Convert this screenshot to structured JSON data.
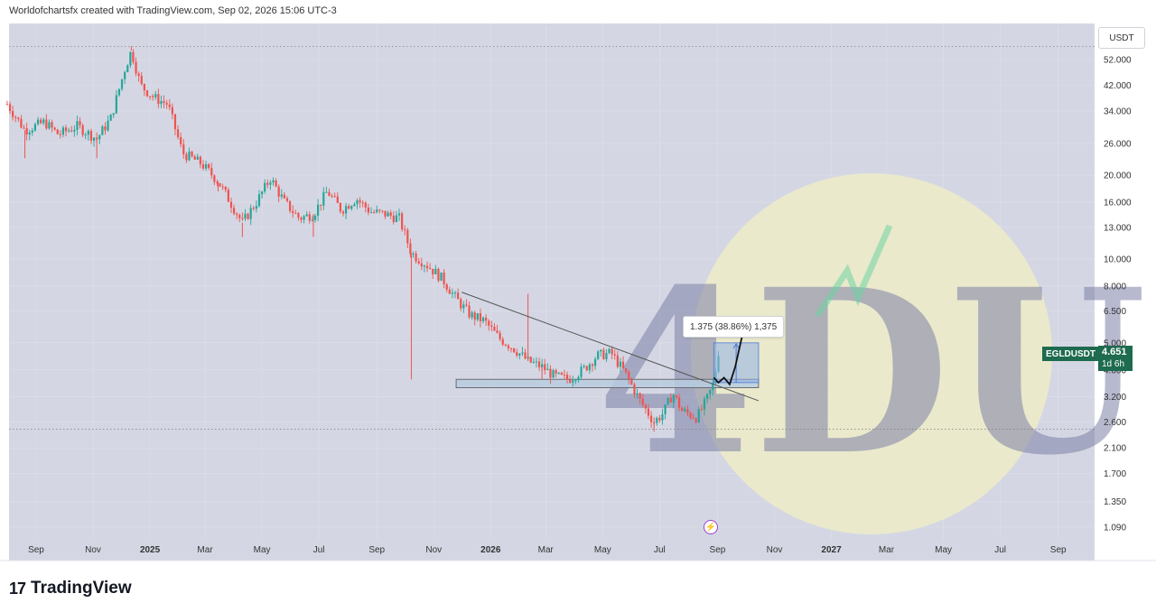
{
  "header": {
    "text": "Worldofchartsfx created with TradingView.com, Sep 02, 2026 15:06 UTC-3"
  },
  "currency": "USDT",
  "ticker": {
    "symbol": "EGLDUSDT",
    "price": "4.651",
    "countdown": "1d 6h"
  },
  "measure_label": "1.375 (38.86%) 1,375",
  "footer": {
    "brand": "TradingView",
    "logo_mark": "17"
  },
  "watermark": {
    "letters": "4DU"
  },
  "colors": {
    "up": "#26a69a",
    "down": "#ef5350",
    "plot_bg": "#d4d7e3",
    "badge": "#1e6b4f",
    "measure_fill": "#8fb0e6",
    "zone_fill": "#b9cde0"
  },
  "chart_data": {
    "type": "candlestick",
    "symbol": "EGLDUSDT",
    "log_scale": true,
    "y_ticks": [
      52.0,
      42.0,
      34.0,
      26.0,
      20.0,
      16.0,
      13.0,
      10.0,
      8.0,
      6.5,
      5.0,
      4.0,
      3.2,
      2.6,
      2.1,
      1.7,
      1.35,
      1.09
    ],
    "y_tick_labels": [
      "52.000",
      "42.000",
      "34.000",
      "26.000",
      "20.000",
      "16.000",
      "13.000",
      "10.000",
      "8.000",
      "6.500",
      "5.000",
      "4.000",
      "3.200",
      "2.600",
      "2.100",
      "1.700",
      "1.350",
      "1.090"
    ],
    "x_tick_labels": [
      "Sep",
      "Nov",
      "2025",
      "Mar",
      "May",
      "Jul",
      "Sep",
      "Nov",
      "2026",
      "Mar",
      "May",
      "Jul",
      "Sep",
      "Nov",
      "2027",
      "Mar",
      "May",
      "Jul",
      "Sep"
    ],
    "bold_x_labels": [
      "2025",
      "2026",
      "2027"
    ],
    "ylim": [
      1.0,
      60.0
    ],
    "xlim": [
      "2024-08-01",
      "2027-10-01"
    ],
    "price_path": [
      [
        "2024-08-01",
        36
      ],
      [
        "2024-08-20",
        29
      ],
      [
        "2024-09-10",
        31
      ],
      [
        "2024-09-25",
        28
      ],
      [
        "2024-10-15",
        30
      ],
      [
        "2024-11-05",
        27
      ],
      [
        "2024-11-20",
        32
      ],
      [
        "2024-12-05",
        48
      ],
      [
        "2024-12-12",
        56
      ],
      [
        "2024-12-22",
        42
      ],
      [
        "2025-01-05",
        38
      ],
      [
        "2025-01-20",
        36
      ],
      [
        "2025-02-05",
        24
      ],
      [
        "2025-02-25",
        22
      ],
      [
        "2025-03-15",
        19
      ],
      [
        "2025-04-10",
        13.5
      ],
      [
        "2025-04-25",
        16
      ],
      [
        "2025-05-10",
        19.5
      ],
      [
        "2025-05-25",
        16
      ],
      [
        "2025-06-10",
        14
      ],
      [
        "2025-06-25",
        14.5
      ],
      [
        "2025-07-10",
        17.5
      ],
      [
        "2025-07-25",
        15
      ],
      [
        "2025-08-10",
        16.5
      ],
      [
        "2025-08-25",
        14.8
      ],
      [
        "2025-09-10",
        14.5
      ],
      [
        "2025-09-25",
        14
      ],
      [
        "2025-10-08",
        10.5
      ],
      [
        "2025-10-25",
        9.5
      ],
      [
        "2025-11-10",
        8.5
      ],
      [
        "2025-11-25",
        7.2
      ],
      [
        "2025-12-10",
        6.3
      ],
      [
        "2025-12-25",
        6.0
      ],
      [
        "2026-01-10",
        5.2
      ],
      [
        "2026-01-25",
        4.8
      ],
      [
        "2026-02-10",
        4.3
      ],
      [
        "2026-02-25",
        4.1
      ],
      [
        "2026-03-10",
        3.8
      ],
      [
        "2026-03-25",
        3.7
      ],
      [
        "2026-04-10",
        4.0
      ],
      [
        "2026-04-25",
        4.5
      ],
      [
        "2026-05-10",
        4.6
      ],
      [
        "2026-05-25",
        3.9
      ],
      [
        "2026-06-10",
        3.1
      ],
      [
        "2026-06-25",
        2.6
      ],
      [
        "2026-07-05",
        2.8
      ],
      [
        "2026-07-15",
        3.3
      ],
      [
        "2026-07-25",
        2.85
      ],
      [
        "2026-08-10",
        2.7
      ],
      [
        "2026-08-20",
        3.1
      ],
      [
        "2026-08-28",
        3.6
      ],
      [
        "2026-09-02",
        4.65
      ]
    ],
    "spikes": [
      [
        "2024-08-20",
        23
      ],
      [
        "2024-11-05",
        23
      ],
      [
        "2025-03-15",
        17.5
      ],
      [
        "2025-04-10",
        12
      ],
      [
        "2025-06-25",
        12
      ],
      [
        "2025-10-08",
        3.7
      ],
      [
        "2026-02-25",
        3.7
      ],
      [
        "2026-06-25",
        2.4
      ],
      [
        "2026-02-10",
        7.5
      ],
      [
        "2024-12-12",
        58
      ]
    ],
    "trendline": {
      "from": [
        "2025-12-01",
        7.6
      ],
      "to": [
        "2026-10-15",
        3.1
      ]
    },
    "support_zone": {
      "x0": "2025-12-01",
      "x1": "2026-10-15",
      "y0": 3.45,
      "y1": 3.7
    },
    "measure_box": {
      "x0": "2026-08-28",
      "x1": "2026-10-15",
      "y0": 3.6,
      "y1": 5.0
    },
    "projection_path": [
      [
        "2026-08-28",
        3.75
      ],
      [
        "2026-09-02",
        3.6
      ],
      [
        "2026-09-08",
        3.75
      ],
      [
        "2026-09-14",
        3.55
      ],
      [
        "2026-09-20",
        4.1
      ],
      [
        "2026-09-28",
        5.4
      ]
    ],
    "dotted_levels": [
      58,
      2.45
    ]
  }
}
